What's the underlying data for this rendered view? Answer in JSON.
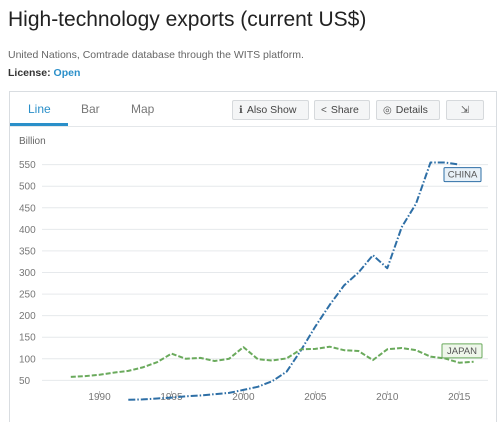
{
  "header": {
    "title": "High-technology exports (current US$)",
    "source": "United Nations, Comtrade database through the WITS platform.",
    "license_label": "License:",
    "license_value": "Open"
  },
  "tabs": [
    {
      "label": "Line",
      "active": true
    },
    {
      "label": "Bar",
      "active": false
    },
    {
      "label": "Map",
      "active": false
    }
  ],
  "toolbar": {
    "also_show": "Also Show",
    "share": "Share",
    "details": "Details",
    "download_icon": "download-icon"
  },
  "colors": {
    "accent": "#2a8fc9",
    "china": "#2e6fa6",
    "japan": "#6aaa5c"
  },
  "chart_data": {
    "type": "line",
    "ylabel": "Billion",
    "ylim": [
      30,
      570
    ],
    "xlim": [
      1986,
      2017
    ],
    "y_ticks": [
      50,
      100,
      150,
      200,
      250,
      300,
      350,
      400,
      450,
      500,
      550
    ],
    "x_ticks": [
      1990,
      1995,
      2000,
      2005,
      2010,
      2015
    ],
    "grid": true,
    "series": [
      {
        "name": "CHINA",
        "style": "dash-dot",
        "x": [
          1992,
          1993,
          1994,
          1995,
          1996,
          1997,
          1998,
          1999,
          2000,
          2001,
          2002,
          2003,
          2004,
          2005,
          2006,
          2007,
          2008,
          2009,
          2010,
          2011,
          2012,
          2013,
          2014,
          2015
        ],
        "values": [
          5,
          6,
          8,
          10,
          13,
          15,
          18,
          21,
          28,
          35,
          48,
          70,
          120,
          175,
          225,
          270,
          300,
          340,
          310,
          405,
          460,
          555,
          555,
          550
        ]
      },
      {
        "name": "JAPAN",
        "style": "dashed",
        "x": [
          1988,
          1989,
          1990,
          1991,
          1992,
          1993,
          1994,
          1995,
          1996,
          1997,
          1998,
          1999,
          2000,
          2001,
          2002,
          2003,
          2004,
          2005,
          2006,
          2007,
          2008,
          2009,
          2010,
          2011,
          2012,
          2013,
          2014,
          2015,
          2016
        ],
        "values": [
          58,
          60,
          63,
          68,
          72,
          80,
          92,
          112,
          100,
          102,
          95,
          100,
          127,
          99,
          96,
          101,
          122,
          123,
          128,
          120,
          118,
          97,
          122,
          125,
          120,
          105,
          101,
          91,
          93
        ]
      }
    ]
  }
}
